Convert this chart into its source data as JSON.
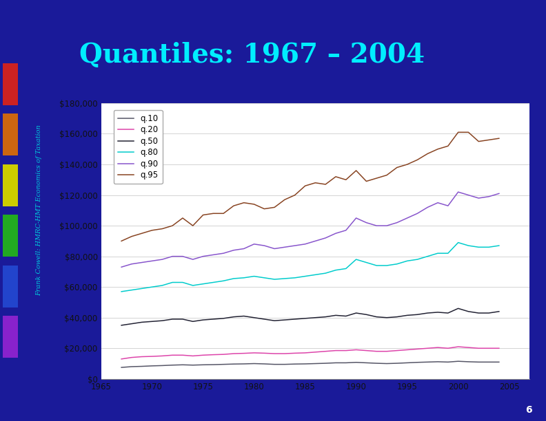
{
  "title": "Quantiles: 1967 – 2004",
  "sidebar_text": "Frank Cowell: HMRC-HMT Economics of Taxation",
  "page_number": "6",
  "background_color": "#1a1a99",
  "plot_bg_color": "#ffffff",
  "title_color": "#00eeff",
  "sidebar_color": "#00ccdd",
  "years": [
    1967,
    1968,
    1969,
    1970,
    1971,
    1972,
    1973,
    1974,
    1975,
    1976,
    1977,
    1978,
    1979,
    1980,
    1981,
    1982,
    1983,
    1984,
    1985,
    1986,
    1987,
    1988,
    1989,
    1990,
    1991,
    1992,
    1993,
    1994,
    1995,
    1996,
    1997,
    1998,
    1999,
    2000,
    2001,
    2002,
    2003,
    2004
  ],
  "q10": [
    7500,
    8000,
    8200,
    8500,
    8700,
    9000,
    9200,
    9000,
    9200,
    9300,
    9500,
    9700,
    9800,
    10000,
    9800,
    9500,
    9500,
    9700,
    9800,
    10000,
    10200,
    10500,
    10500,
    10800,
    10500,
    10200,
    10000,
    10200,
    10500,
    10800,
    11000,
    11200,
    11000,
    11500,
    11200,
    11000,
    11000,
    11000
  ],
  "q20": [
    13000,
    14000,
    14500,
    14700,
    15000,
    15500,
    15500,
    15000,
    15500,
    15800,
    16000,
    16500,
    16700,
    17000,
    16800,
    16500,
    16500,
    16800,
    17000,
    17500,
    18000,
    18500,
    18500,
    19000,
    18500,
    18000,
    18000,
    18500,
    19000,
    19500,
    20000,
    20500,
    20000,
    21000,
    20500,
    20000,
    20000,
    20000
  ],
  "q50": [
    35000,
    36000,
    37000,
    37500,
    38000,
    39000,
    39000,
    37500,
    38500,
    39000,
    39500,
    40500,
    41000,
    40000,
    39000,
    38000,
    38500,
    39000,
    39500,
    40000,
    40500,
    41500,
    41000,
    43000,
    42000,
    40500,
    40000,
    40500,
    41500,
    42000,
    43000,
    43500,
    43000,
    46000,
    44000,
    43000,
    43000,
    44000
  ],
  "q80": [
    57000,
    58000,
    59000,
    60000,
    61000,
    63000,
    63000,
    61000,
    62000,
    63000,
    64000,
    65500,
    66000,
    67000,
    66000,
    65000,
    65500,
    66000,
    67000,
    68000,
    69000,
    71000,
    72000,
    78000,
    76000,
    74000,
    74000,
    75000,
    77000,
    78000,
    80000,
    82000,
    82000,
    89000,
    87000,
    86000,
    86000,
    87000
  ],
  "q90": [
    73000,
    75000,
    76000,
    77000,
    78000,
    80000,
    80000,
    78000,
    80000,
    81000,
    82000,
    84000,
    85000,
    88000,
    87000,
    85000,
    86000,
    87000,
    88000,
    90000,
    92000,
    95000,
    97000,
    105000,
    102000,
    100000,
    100000,
    102000,
    105000,
    108000,
    112000,
    115000,
    113000,
    122000,
    120000,
    118000,
    119000,
    121000
  ],
  "q95": [
    90000,
    93000,
    95000,
    97000,
    98000,
    100000,
    105000,
    100000,
    107000,
    108000,
    108000,
    113000,
    115000,
    114000,
    111000,
    112000,
    117000,
    120000,
    126000,
    128000,
    127000,
    132000,
    130000,
    136000,
    129000,
    131000,
    133000,
    138000,
    140000,
    143000,
    147000,
    150000,
    152000,
    161000,
    161000,
    155000,
    156000,
    157000
  ],
  "line_colors": {
    "q10": "#555566",
    "q20": "#dd44aa",
    "q50": "#222233",
    "q80": "#00cccc",
    "q90": "#8855cc",
    "q95": "#884422"
  },
  "sidebar_squares": [
    "#cc2222",
    "#cc6611",
    "#cccc00",
    "#22aa22",
    "#2244cc",
    "#8822cc"
  ],
  "ylim": [
    0,
    180000
  ],
  "yticks": [
    0,
    20000,
    40000,
    60000,
    80000,
    100000,
    120000,
    140000,
    160000,
    180000
  ],
  "xlim": [
    1965,
    2007
  ],
  "xticks": [
    1965,
    1970,
    1975,
    1980,
    1985,
    1990,
    1995,
    2000,
    2005
  ]
}
